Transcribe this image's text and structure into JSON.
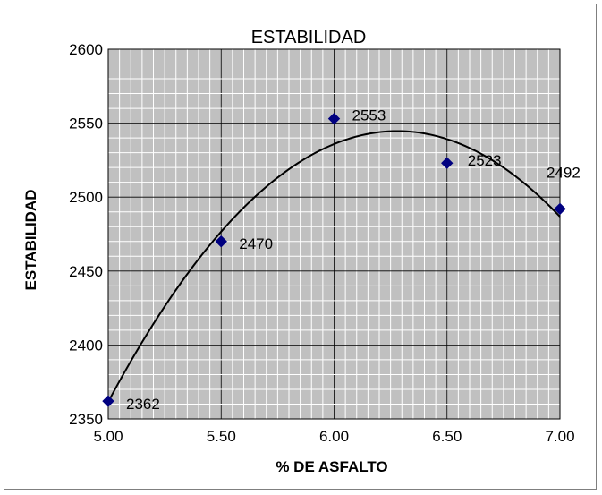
{
  "chart_data": {
    "type": "scatter",
    "title": "ESTABILIDAD",
    "xlabel": "% DE ASFALTO",
    "ylabel": "ESTABILIDAD",
    "xlim": [
      5.0,
      7.0
    ],
    "ylim": [
      2350,
      2600
    ],
    "x_ticks": [
      "5.00",
      "5.50",
      "6.00",
      "6.50",
      "7.00"
    ],
    "y_ticks": [
      "2350",
      "2400",
      "2450",
      "2500",
      "2550",
      "2600"
    ],
    "grid": true,
    "series": [
      {
        "points": [
          {
            "x": 5.0,
            "y": 2362,
            "label": "2362"
          },
          {
            "x": 5.5,
            "y": 2470,
            "label": "2470"
          },
          {
            "x": 6.0,
            "y": 2553,
            "label": "2553"
          },
          {
            "x": 6.5,
            "y": 2523,
            "label": "2523"
          },
          {
            "x": 7.0,
            "y": 2492,
            "label": "2492"
          }
        ],
        "marker": "diamond",
        "marker_color": "#000080",
        "trendline": "polynomial-2"
      }
    ],
    "plot_background": "#c0c0c0",
    "grid_color": "#000000"
  }
}
